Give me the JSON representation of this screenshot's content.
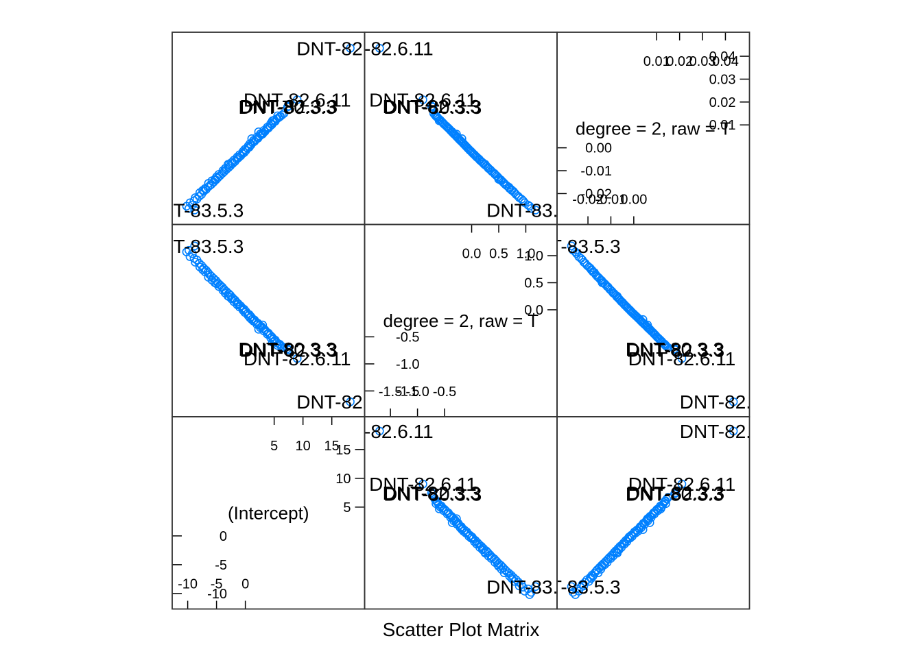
{
  "colors": {
    "point": "#0080ff",
    "frame": "#333333",
    "text": "#000000"
  },
  "chart_data": {
    "type": "scatter",
    "title": "",
    "xlabel": "Scatter Plot Matrix",
    "variables": [
      {
        "name": "(Intercept)",
        "range": [
          -11.5,
          19.5
        ],
        "ticks": [
          -10,
          -5,
          0,
          5,
          10,
          15
        ]
      },
      {
        "name": "degree = 2, raw = T",
        "range": [
          -1.85,
          1.45
        ],
        "ticks": [
          -1.5,
          -1.0,
          -0.5,
          0.0,
          0.5,
          1.0
        ],
        "tick_labels": [
          "-1.5",
          "-1.0",
          "-0.5",
          "0.0",
          "0.5",
          "1.0"
        ]
      },
      {
        "name": "degree = 2, raw = T",
        "range": [
          -0.0305,
          0.0475
        ],
        "ticks": [
          -0.02,
          -0.01,
          0.0,
          0.01,
          0.02,
          0.03,
          0.04
        ],
        "tick_labels": [
          "-0.02",
          "-0.01",
          "0.00",
          "0.01",
          "0.02",
          "0.03",
          "0.04"
        ]
      }
    ],
    "point_labels": [
      "DNT-82.6.11",
      "DNT-80.3.3",
      "DNT-82.3.3",
      "DNT-83.5.3"
    ],
    "observations": [
      [
        18.2,
        -1.7,
        0.0435,
        0
      ],
      [
        9.0,
        -0.9,
        0.021,
        0
      ],
      [
        7.3,
        -0.72,
        0.0178,
        1
      ],
      [
        7.5,
        -0.74,
        0.0182,
        2
      ],
      [
        -8.8,
        1.18,
        -0.0272,
        3
      ],
      [
        -10.2,
        1.07,
        -0.0255,
        0
      ],
      [
        -9.8,
        1.1,
        -0.0265,
        0
      ],
      [
        -9.2,
        1.04,
        -0.025,
        0
      ],
      [
        -9.6,
        0.98,
        -0.024,
        0
      ],
      [
        -8.9,
        0.95,
        -0.0231,
        0
      ],
      [
        -8.4,
        0.92,
        -0.0224,
        0
      ],
      [
        -8.7,
        0.88,
        -0.0218,
        0
      ],
      [
        -8.0,
        0.86,
        -0.0212,
        0
      ],
      [
        -7.6,
        0.82,
        -0.0204,
        0
      ],
      [
        -7.9,
        0.79,
        -0.0196,
        0
      ],
      [
        -7.2,
        0.77,
        -0.019,
        0
      ],
      [
        -6.8,
        0.73,
        -0.0182,
        0
      ],
      [
        -7.0,
        0.7,
        -0.0178,
        0
      ],
      [
        -6.5,
        0.69,
        -0.0172,
        0
      ],
      [
        -6.2,
        0.65,
        -0.0166,
        0
      ],
      [
        -5.9,
        0.62,
        -0.016,
        0
      ],
      [
        -6.4,
        0.6,
        -0.0155,
        0
      ],
      [
        -5.5,
        0.58,
        -0.015,
        0
      ],
      [
        -5.8,
        0.55,
        -0.0144,
        0
      ],
      [
        -5.1,
        0.54,
        -0.014,
        0
      ],
      [
        -4.8,
        0.5,
        -0.0132,
        0
      ],
      [
        -5.0,
        0.48,
        -0.0127,
        0
      ],
      [
        -4.4,
        0.46,
        -0.0122,
        0
      ],
      [
        -4.6,
        0.43,
        -0.0116,
        0
      ],
      [
        -4.0,
        0.42,
        -0.0112,
        0
      ],
      [
        -3.7,
        0.38,
        -0.0105,
        0
      ],
      [
        -3.9,
        0.36,
        -0.01,
        0
      ],
      [
        -3.3,
        0.34,
        -0.0095,
        0
      ],
      [
        -3.5,
        0.31,
        -0.009,
        0
      ],
      [
        -2.9,
        0.3,
        -0.0086,
        0
      ],
      [
        -2.6,
        0.27,
        -0.0079,
        0
      ],
      [
        -2.8,
        0.24,
        -0.0074,
        0
      ],
      [
        -2.2,
        0.22,
        -0.0069,
        0
      ],
      [
        -2.4,
        0.2,
        -0.0064,
        0
      ],
      [
        -1.8,
        0.18,
        -0.006,
        0
      ],
      [
        -2.0,
        0.15,
        -0.0054,
        0
      ],
      [
        -1.5,
        0.14,
        -0.005,
        0
      ],
      [
        -1.2,
        0.11,
        -0.0044,
        0
      ],
      [
        -1.4,
        0.09,
        -0.004,
        0
      ],
      [
        -0.8,
        0.07,
        -0.0035,
        0
      ],
      [
        -1.0,
        0.05,
        -0.003,
        0
      ],
      [
        -0.5,
        0.03,
        -0.0026,
        0
      ],
      [
        -0.2,
        0.01,
        -0.0021,
        0
      ],
      [
        -0.4,
        -0.01,
        -0.0016,
        0
      ],
      [
        0.1,
        -0.03,
        -0.0012,
        0
      ],
      [
        -0.1,
        -0.05,
        -0.0007,
        0
      ],
      [
        0.4,
        -0.07,
        -0.0002,
        0
      ],
      [
        0.7,
        -0.09,
        0.0003,
        0
      ],
      [
        0.5,
        -0.11,
        0.0008,
        0
      ],
      [
        1.0,
        -0.13,
        0.0013,
        0
      ],
      [
        0.8,
        -0.15,
        0.0018,
        0
      ],
      [
        1.3,
        -0.17,
        0.0023,
        0
      ],
      [
        1.6,
        -0.19,
        0.0028,
        0
      ],
      [
        1.4,
        -0.21,
        0.0032,
        0
      ],
      [
        1.9,
        -0.23,
        0.0037,
        0
      ],
      [
        2.2,
        -0.25,
        0.0042,
        0
      ],
      [
        2.0,
        -0.27,
        0.0047,
        0
      ],
      [
        2.5,
        -0.29,
        0.0052,
        0
      ],
      [
        2.8,
        -0.31,
        0.0057,
        0
      ],
      [
        2.6,
        -0.33,
        0.0061,
        0
      ],
      [
        3.1,
        -0.35,
        0.0066,
        0
      ],
      [
        3.4,
        -0.37,
        0.0071,
        0
      ],
      [
        3.2,
        -0.39,
        0.0076,
        0
      ],
      [
        3.7,
        -0.41,
        0.0081,
        0
      ],
      [
        4.0,
        -0.43,
        0.0086,
        0
      ],
      [
        3.8,
        -0.45,
        0.009,
        0
      ],
      [
        4.3,
        -0.47,
        0.0095,
        0
      ],
      [
        4.6,
        -0.5,
        0.0101,
        0
      ],
      [
        4.4,
        -0.52,
        0.0106,
        0
      ],
      [
        4.9,
        -0.54,
        0.0111,
        0
      ],
      [
        5.2,
        -0.56,
        0.0116,
        0
      ],
      [
        5.0,
        -0.58,
        0.0121,
        0
      ],
      [
        5.5,
        -0.61,
        0.0127,
        0
      ],
      [
        5.8,
        -0.63,
        0.0132,
        0
      ],
      [
        6.1,
        -0.66,
        0.0138,
        0
      ],
      [
        6.4,
        -0.68,
        0.0144,
        0
      ],
      [
        6.0,
        -0.64,
        0.0136,
        0
      ],
      [
        6.7,
        -0.7,
        0.015,
        0
      ],
      [
        3.0,
        -0.28,
        0.006,
        0
      ],
      [
        1.1,
        -0.18,
        0.004,
        0
      ],
      [
        -3.0,
        0.25,
        -0.0072,
        0
      ],
      [
        -5.3,
        0.5,
        -0.0138,
        0
      ],
      [
        -7.4,
        0.74,
        -0.0186,
        0
      ],
      [
        2.3,
        -0.36,
        0.007,
        0
      ],
      [
        4.7,
        -0.6,
        0.0118,
        0
      ],
      [
        5.6,
        -0.66,
        0.014,
        0
      ]
    ]
  }
}
